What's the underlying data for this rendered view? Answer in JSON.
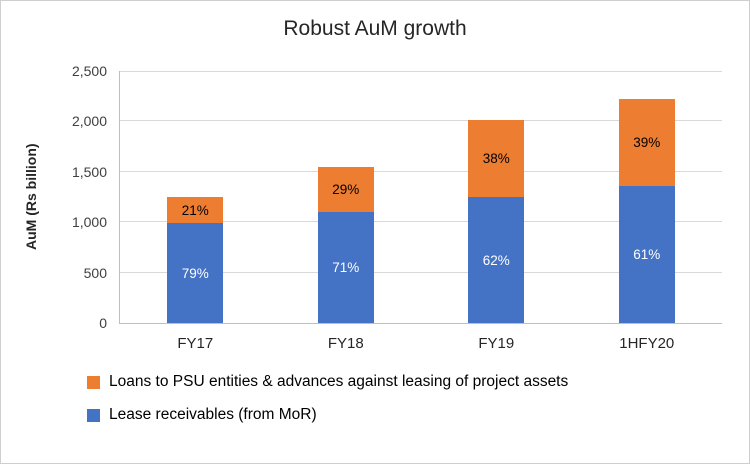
{
  "chart_data": {
    "type": "bar",
    "stacked": true,
    "title": "Robust AuM growth",
    "ylabel": "AuM (Rs billion)",
    "xlabel": "",
    "ylim": [
      0,
      2500
    ],
    "ytick_values": [
      0,
      500,
      1000,
      1500,
      2000,
      2500
    ],
    "ytick_labels": [
      "0",
      "500",
      "1,000",
      "1,500",
      "2,000",
      "2,500"
    ],
    "grid": true,
    "categories": [
      "FY17",
      "FY18",
      "FY19",
      "1HFY20"
    ],
    "series": [
      {
        "name": "Lease receivables (from MoR)",
        "color": "#4472C4",
        "values": [
          990,
          1100,
          1250,
          1355
        ],
        "labels": [
          "79%",
          "71%",
          "62%",
          "61%"
        ],
        "label_color": "#ffffff"
      },
      {
        "name": "Loans to PSU entities & advances against leasing of project assets",
        "color": "#ED7D31",
        "values": [
          260,
          450,
          760,
          865
        ],
        "labels": [
          "21%",
          "29%",
          "38%",
          "39%"
        ],
        "label_color": "#000000"
      }
    ],
    "totals": [
      1250,
      1550,
      2010,
      2220
    ],
    "legend_position": "bottom-left"
  },
  "legend": {
    "items": [
      {
        "label": "Loans to PSU entities & advances against leasing of project assets",
        "color": "#ED7D31"
      },
      {
        "label": "Lease receivables (from MoR)",
        "color": "#4472C4"
      }
    ]
  }
}
